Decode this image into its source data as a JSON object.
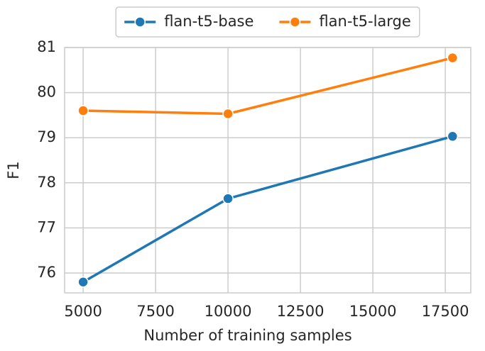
{
  "chart_data": {
    "type": "line",
    "x_label": "Number of training samples",
    "y_label": "F1",
    "x": [
      5000,
      10000,
      17750
    ],
    "series": [
      {
        "name": "flan-t5-base",
        "color": "#1f77b4",
        "values": [
          75.8,
          77.65,
          79.03
        ]
      },
      {
        "name": "flan-t5-large",
        "color": "#ff7f0e",
        "values": [
          79.6,
          79.53,
          80.77
        ]
      }
    ],
    "xlim": [
      4360,
      18380
    ],
    "ylim": [
      75.56,
      81.0
    ],
    "xticks": [
      5000,
      7500,
      10000,
      12500,
      15000,
      17500
    ],
    "yticks": [
      76,
      77,
      78,
      79,
      80,
      81
    ],
    "grid": true,
    "legend": "top"
  }
}
